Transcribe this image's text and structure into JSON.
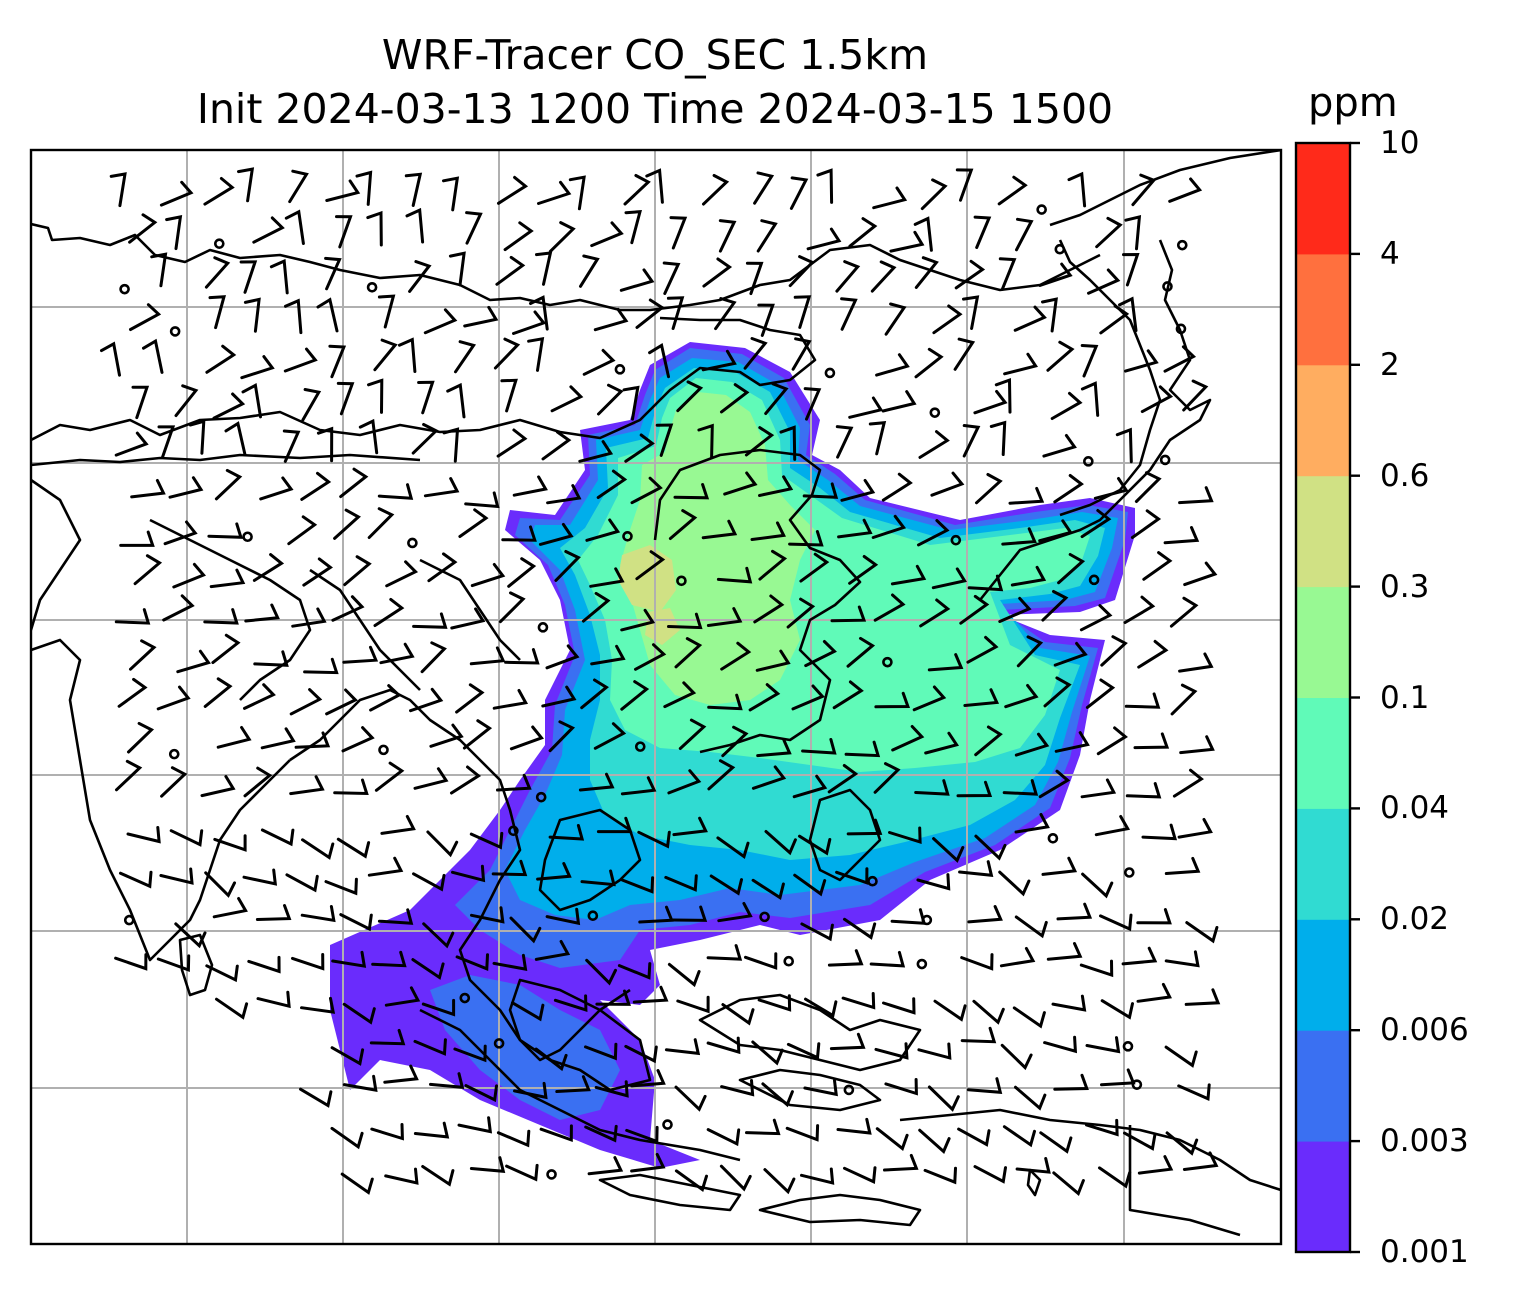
{
  "title_line1": "WRF-Tracer CO_SEC 1.5km",
  "title_line2": "Init 2024-03-13 1200 Time 2024-03-15 1500",
  "colorbar": {
    "units": "ppm",
    "levels": [
      "0.001",
      "0.003",
      "0.006",
      "0.02",
      "0.04",
      "0.1",
      "0.3",
      "0.6",
      "2",
      "4",
      "10"
    ],
    "colors": [
      "#6a2cfc",
      "#3a70f2",
      "#00aeeb",
      "#30dbd2",
      "#60fab8",
      "#98f993",
      "#d0e184",
      "#ffad60",
      "#ff703e",
      "#ff2a1a"
    ]
  },
  "map": {
    "field": "CO_SEC tracer concentration",
    "overlays": [
      "wind barbs",
      "coastlines",
      "country borders",
      "lat/lon gridlines"
    ],
    "gridlines": true
  }
}
